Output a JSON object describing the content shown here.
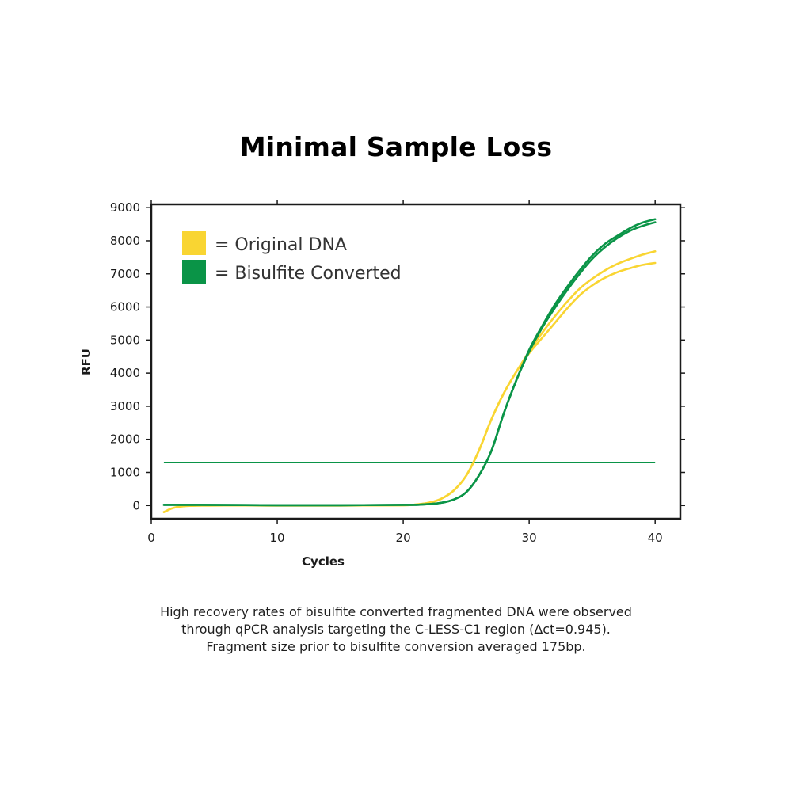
{
  "title": "Minimal Sample Loss",
  "caption": {
    "lines": [
      "High recovery rates of bisulfite converted fragmented DNA were observed",
      "through qPCR analysis targeting the C-LESS-C1 region (Δct=0.945).",
      "Fragment size prior to bisulfite conversion averaged 175bp."
    ]
  },
  "colors": {
    "original": "#f9d532",
    "bisulfite": "#0a9447",
    "axis": "#1a1a1a"
  },
  "chart_data": {
    "type": "line",
    "title": "Minimal Sample Loss",
    "xlabel": "Cycles",
    "ylabel": "RFU",
    "xlim": [
      0,
      42
    ],
    "ylim": [
      -400,
      9100
    ],
    "xticks": [
      0,
      10,
      20,
      30,
      40
    ],
    "yticks": [
      0,
      1000,
      2000,
      3000,
      4000,
      5000,
      6000,
      7000,
      8000,
      9000
    ],
    "grid": false,
    "legend": {
      "placement": "top-left",
      "entries": [
        {
          "label": "= Original DNA",
          "color_key": "original"
        },
        {
          "label": "= Bisulfite Converted",
          "color_key": "bisulfite"
        }
      ]
    },
    "threshold": {
      "y": 1300,
      "x_range": [
        1,
        40
      ],
      "color_key": "bisulfite"
    },
    "series": [
      {
        "color_key": "original",
        "x": [
          1,
          2,
          4,
          10,
          15,
          20,
          21,
          22,
          23,
          24,
          25,
          26,
          27,
          28,
          29,
          30,
          31,
          32,
          33,
          34,
          35,
          36,
          37,
          38,
          39,
          40
        ],
        "y": [
          -200,
          -50,
          0,
          0,
          0,
          10,
          30,
          80,
          200,
          450,
          900,
          1650,
          2600,
          3400,
          4050,
          4650,
          5200,
          5700,
          6150,
          6550,
          6850,
          7100,
          7300,
          7450,
          7580,
          7680
        ]
      },
      {
        "color_key": "original",
        "x": [
          1,
          2,
          4,
          10,
          15,
          20,
          21,
          22,
          23,
          24,
          25,
          26,
          27,
          28,
          29,
          30,
          31,
          32,
          33,
          34,
          35,
          36,
          37,
          38,
          39,
          40
        ],
        "y": [
          -200,
          -50,
          0,
          0,
          0,
          10,
          30,
          80,
          200,
          450,
          900,
          1650,
          2600,
          3400,
          4050,
          4600,
          5050,
          5500,
          5950,
          6350,
          6650,
          6880,
          7050,
          7170,
          7270,
          7330
        ]
      },
      {
        "color_key": "bisulfite",
        "x": [
          1,
          4,
          10,
          15,
          20,
          21,
          22,
          23,
          24,
          25,
          26,
          27,
          28,
          29,
          30,
          31,
          32,
          33,
          34,
          35,
          36,
          37,
          38,
          39,
          40
        ],
        "y": [
          20,
          20,
          10,
          10,
          20,
          20,
          40,
          80,
          180,
          400,
          900,
          1650,
          2800,
          3800,
          4700,
          5400,
          6050,
          6600,
          7100,
          7550,
          7900,
          8150,
          8380,
          8550,
          8650
        ]
      },
      {
        "color_key": "bisulfite",
        "x": [
          1,
          4,
          10,
          15,
          20,
          21,
          22,
          23,
          24,
          25,
          26,
          27,
          28,
          29,
          30,
          31,
          32,
          33,
          34,
          35,
          36,
          37,
          38,
          39,
          40
        ],
        "y": [
          20,
          20,
          10,
          10,
          20,
          20,
          40,
          80,
          180,
          400,
          900,
          1650,
          2800,
          3800,
          4650,
          5350,
          5950,
          6500,
          7000,
          7450,
          7800,
          8080,
          8300,
          8450,
          8560
        ]
      }
    ]
  }
}
